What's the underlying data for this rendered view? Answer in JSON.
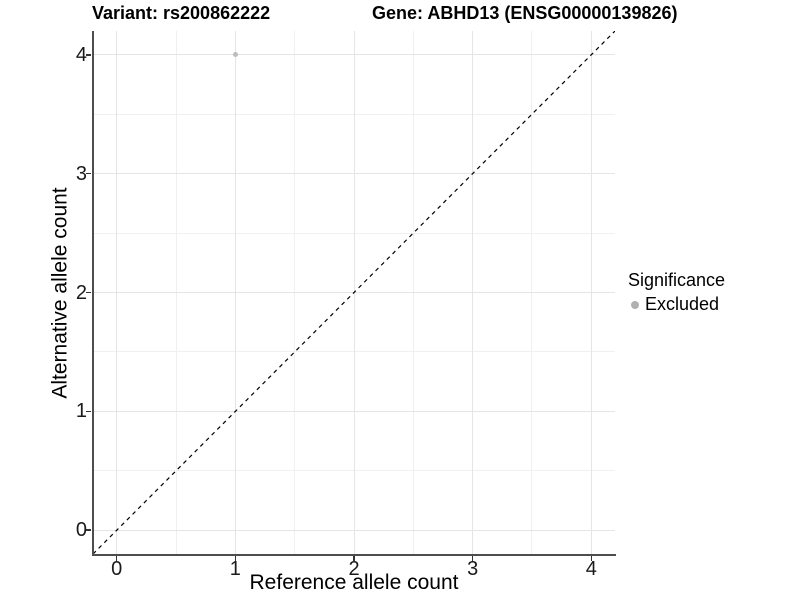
{
  "chart_data": {
    "type": "scatter",
    "title_left": "Variant: rs200862222",
    "title_right": "Gene: ABHD13 (ENSG00000139826)",
    "xlabel": "Reference allele count",
    "ylabel": "Alternative allele count",
    "xlim": [
      -0.2,
      4.2
    ],
    "ylim": [
      -0.2,
      4.2
    ],
    "x_ticks": [
      0,
      1,
      2,
      3,
      4
    ],
    "y_ticks": [
      0,
      1,
      2,
      3,
      4
    ],
    "grid": {
      "major": true,
      "minor": true
    },
    "series": [
      {
        "name": "Excluded",
        "color": "#bdbdbd",
        "points": [
          {
            "x": 1,
            "y": 4
          }
        ]
      }
    ],
    "reference_line": {
      "type": "identity",
      "slope": 1,
      "intercept": 0,
      "style": "dashed",
      "color": "#000000"
    },
    "legend": {
      "title": "Significance",
      "position": "right",
      "entries": [
        {
          "label": "Excluded",
          "color": "#b0b0b0"
        }
      ]
    }
  }
}
